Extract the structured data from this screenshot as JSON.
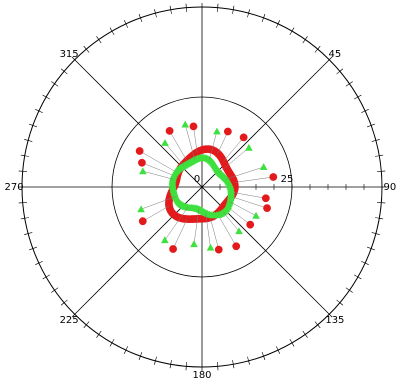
{
  "chart_data": {
    "type": "scatter",
    "coordinate_system": "polar",
    "angle_direction": "clockwise",
    "zero_angle_at": "top",
    "grid": true,
    "angle_labels": [
      {
        "angle": 315,
        "text": "315"
      },
      {
        "angle": 45,
        "text": "45"
      },
      {
        "angle": 270,
        "text": "270"
      },
      {
        "angle": 90,
        "text": "90"
      },
      {
        "angle": 225,
        "text": "225"
      },
      {
        "angle": 135,
        "text": "135"
      },
      {
        "angle": 180,
        "text": "180"
      }
    ],
    "radial_labels": [
      {
        "r": 0,
        "text": "0"
      },
      {
        "r": 25,
        "text": "25"
      }
    ],
    "radial_rings": [
      25
    ],
    "rlim": [
      50,
      0
    ],
    "series": [
      {
        "marker": "circle",
        "color": "#e31a1c",
        "radius_profile": {
          "base": 9.0,
          "amp1": 1.1,
          "phase1": 30,
          "amp2": 0.7,
          "phase2": 110,
          "amp3": 0.45,
          "phase3": 10
        },
        "point_count": 110,
        "outliers": [
          {
            "angle": 25,
            "r": 17
          },
          {
            "angle": 40,
            "r": 18
          },
          {
            "angle": 82,
            "r": 20
          },
          {
            "angle": 100,
            "r": 18
          },
          {
            "angle": 108,
            "r": 19
          },
          {
            "angle": 128,
            "r": 17
          },
          {
            "angle": 150,
            "r": 19
          },
          {
            "angle": 165,
            "r": 18
          },
          {
            "angle": 205,
            "r": 19
          },
          {
            "angle": 240,
            "r": 19
          },
          {
            "angle": 292,
            "r": 18
          },
          {
            "angle": 300,
            "r": 20
          },
          {
            "angle": 330,
            "r": 18
          },
          {
            "angle": 352,
            "r": 17
          }
        ]
      },
      {
        "marker": "triangle",
        "color": "#3ee03e",
        "radius_profile": {
          "base": 7.7,
          "amp1": 0.9,
          "phase1": 200,
          "amp2": 0.6,
          "phase2": 60,
          "amp3": 0.35,
          "phase3": 50
        },
        "point_count": 120,
        "outliers": [
          {
            "angle": 15,
            "r": 16
          },
          {
            "angle": 50,
            "r": 17
          },
          {
            "angle": 72,
            "r": 18
          },
          {
            "angle": 118,
            "r": 17
          },
          {
            "angle": 140,
            "r": 16
          },
          {
            "angle": 172,
            "r": 17
          },
          {
            "angle": 188,
            "r": 16
          },
          {
            "angle": 215,
            "r": 18
          },
          {
            "angle": 250,
            "r": 18
          },
          {
            "angle": 285,
            "r": 17
          },
          {
            "angle": 320,
            "r": 16
          },
          {
            "angle": 345,
            "r": 18
          }
        ]
      }
    ]
  }
}
